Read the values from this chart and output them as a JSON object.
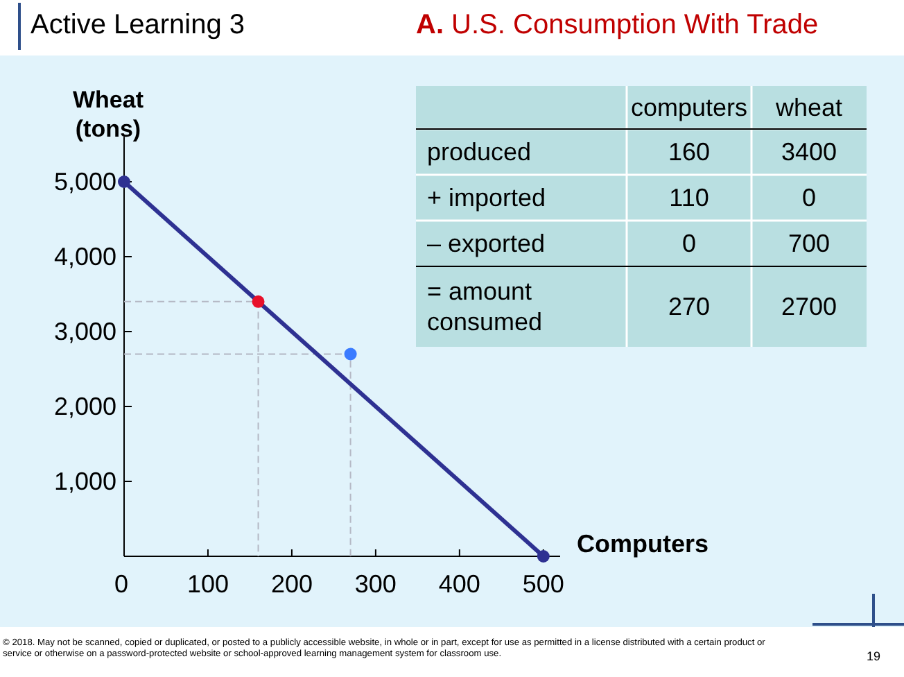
{
  "chart_data": [
    {
      "type": "line",
      "title": "Active Learning 3",
      "subtitle": "A. U.S. Consumption With Trade",
      "xlabel": "Computers",
      "ylabel": "Wheat\n(tons)",
      "xlim": [
        0,
        520
      ],
      "ylim": [
        0,
        5600
      ],
      "xticks": [
        {
          "value": 0,
          "label": "0"
        },
        100,
        200,
        300,
        400,
        500
      ],
      "yticks": [
        {
          "value": 1000,
          "label": "1,000"
        },
        {
          "value": 2000,
          "label": "2,000"
        },
        {
          "value": 3000,
          "label": "3,000"
        },
        {
          "value": 4000,
          "label": "4,000"
        },
        {
          "value": 5000,
          "label": "5,000"
        }
      ],
      "series": [
        {
          "type": "line",
          "color": "#b4b8c4",
          "line_style": "dashed",
          "marker": "none",
          "x": [
            0,
            160,
            160
          ],
          "values": [
            3400,
            3400,
            0
          ]
        },
        {
          "type": "line",
          "color": "#b4b8c4",
          "line_style": "dashed",
          "marker": "none",
          "x": [
            0,
            270,
            270
          ],
          "values": [
            2700,
            2700,
            0
          ]
        },
        {
          "type": "line",
          "color": "#2e3192",
          "line_style": "solid",
          "marker": "circle",
          "x": [
            0,
            500
          ],
          "values": [
            5000,
            0
          ]
        },
        {
          "type": "scatter",
          "color": "#e8102a",
          "marker": "circle",
          "x": [
            160
          ],
          "values": [
            3400
          ]
        },
        {
          "type": "scatter",
          "color": "#3a7bff",
          "marker": "circle",
          "x": [
            270
          ],
          "values": [
            2700
          ]
        }
      ],
      "annotations": [
        "© 2018. May not be scanned, copied or duplicated, or posted to a publicly accessible website, in whole or in part, except for use as permitted in a license distributed with a certain product or service or otherwise on a password-protected website or school-approved learning management system for classroom use.",
        "19"
      ]
    },
    {
      "type": "other",
      "annotations": [
        "computers",
        "wheat",
        "produced",
        "160",
        "3400",
        "+ imported",
        "110",
        "0",
        "– exported",
        "0",
        "700",
        "= amount\nconsumed",
        "270",
        "2700"
      ]
    }
  ]
}
